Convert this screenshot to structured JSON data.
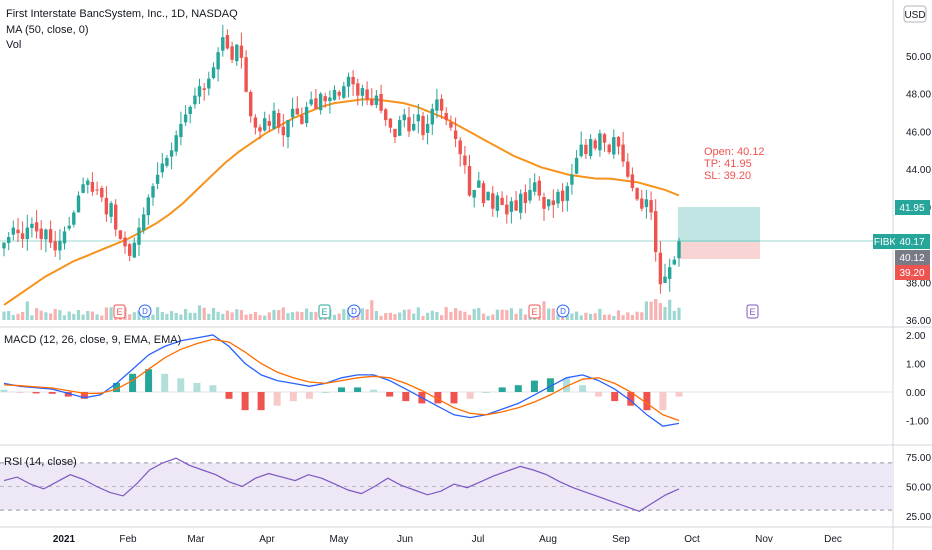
{
  "header": {
    "symbol_line": "First Interstate BancSystem, Inc., 1D, NASDAQ",
    "ma_label": "MA (50, close, 0)",
    "vol_label": "Vol",
    "currency": "USD"
  },
  "macd_label": "MACD (12, 26, close, 9, EMA, EMA)",
  "rsi_label": "RSI (14, close)",
  "trade": {
    "open_text": "Open: 40.12",
    "tp_text": "TP: 41.95",
    "sl_text": "SL: 39.20",
    "open": 40.12,
    "tp": 41.95,
    "sl": 39.2
  },
  "price_tags": {
    "tp": "41.95",
    "ticker": "FIBK",
    "last": "40.17",
    "open": "40.12",
    "sl": "39.20"
  },
  "colors": {
    "up": "#26a69a",
    "down": "#ef5350",
    "ma": "#f7931a",
    "macd": "#2962ff",
    "signal": "#ff6d00",
    "rsi": "#7e57c2",
    "rsi_band": "#ede7f6",
    "target_zone": "#b2dfdb",
    "stop_zone": "#f8c9c9"
  },
  "event_markers": [
    "E",
    "D",
    "E",
    "D",
    "E",
    "D",
    "E"
  ],
  "chart_data": {
    "type": "candlestick",
    "x_axis_labels": [
      "2021",
      "Feb",
      "Mar",
      "Apr",
      "May",
      "Jun",
      "Jul",
      "Aug",
      "Sep",
      "Oct",
      "Nov",
      "Dec"
    ],
    "price_axis": {
      "ticks": [
        "50.00",
        "48.00",
        "46.00",
        "44.00",
        "42.00",
        "38.00",
        "36.00"
      ],
      "range": [
        36.0,
        52.5
      ]
    },
    "macd_axis": {
      "ticks": [
        "2.00",
        "1.00",
        "0.00",
        "-1.00"
      ],
      "range": [
        -1.5,
        2.2
      ]
    },
    "rsi_axis": {
      "ticks": [
        "75.00",
        "50.00",
        "25.00"
      ],
      "range": [
        20,
        82
      ],
      "band": [
        30,
        70
      ]
    },
    "price_close": [
      40.1,
      40.4,
      40.9,
      40.6,
      40.3,
      40.9,
      41.1,
      40.7,
      40.3,
      40.8,
      40.1,
      39.7,
      40.2,
      40.7,
      41.0,
      41.7,
      42.6,
      43.2,
      43.4,
      42.8,
      42.9,
      42.5,
      41.6,
      42.2,
      40.8,
      40.3,
      39.9,
      39.4,
      40.1,
      40.9,
      41.6,
      42.5,
      43.1,
      43.7,
      44.3,
      44.6,
      45.0,
      45.8,
      46.4,
      46.9,
      47.3,
      47.9,
      48.4,
      48.2,
      48.8,
      49.4,
      50.2,
      51.0,
      50.4,
      49.8,
      50.6,
      49.9,
      48.1,
      46.8,
      46.2,
      46.0,
      46.7,
      46.3,
      47.1,
      46.2,
      45.8,
      46.6,
      47.2,
      46.9,
      46.4,
      47.3,
      47.7,
      47.2,
      48.0,
      47.6,
      47.8,
      48.2,
      47.9,
      48.4,
      48.9,
      48.5,
      47.9,
      48.3,
      47.7,
      47.4,
      47.9,
      47.1,
      46.6,
      46.2,
      45.7,
      46.6,
      46.9,
      46.0,
      46.4,
      46.9,
      45.8,
      46.4,
      47.2,
      47.7,
      47.1,
      46.6,
      46.2,
      45.6,
      44.8,
      44.2,
      42.6,
      42.9,
      43.4,
      42.2,
      42.8,
      41.9,
      42.6,
      42.1,
      41.6,
      42.3,
      41.8,
      42.7,
      42.2,
      42.9,
      43.3,
      42.6,
      41.9,
      42.4,
      42.1,
      42.8,
      42.3,
      43.1,
      43.7,
      44.6,
      45.3,
      44.8,
      45.6,
      45.1,
      45.9,
      45.4,
      44.9,
      45.7,
      45.2,
      44.4,
      43.6,
      43.0,
      42.4,
      41.9,
      42.4,
      41.7,
      39.6,
      37.9,
      38.3,
      38.8,
      39.2,
      40.17
    ],
    "ma50": [
      36.8,
      37.3,
      37.8,
      38.3,
      38.7,
      39.1,
      39.4,
      39.7,
      40.0,
      40.3,
      40.7,
      41.1,
      41.6,
      42.2,
      42.9,
      43.6,
      44.3,
      44.9,
      45.4,
      45.9,
      46.3,
      46.7,
      47.0,
      47.3,
      47.5,
      47.6,
      47.7,
      47.7,
      47.6,
      47.5,
      47.3,
      47.0,
      46.7,
      46.3,
      45.9,
      45.5,
      45.1,
      44.7,
      44.4,
      44.1,
      43.9,
      43.7,
      43.6,
      43.5,
      43.5,
      43.4,
      43.3,
      43.1,
      42.9,
      42.6
    ],
    "macd": [
      0.3,
      0.2,
      0.15,
      0.1,
      -0.05,
      -0.2,
      -0.1,
      0.3,
      0.8,
      1.3,
      1.6,
      1.8,
      1.9,
      2.0,
      1.6,
      1.0,
      0.6,
      0.4,
      0.3,
      0.2,
      0.3,
      0.5,
      0.6,
      0.6,
      0.4,
      0.1,
      -0.2,
      -0.5,
      -0.8,
      -0.9,
      -0.8,
      -0.6,
      -0.4,
      -0.1,
      0.2,
      0.5,
      0.6,
      0.4,
      0.1,
      -0.3,
      -0.8,
      -1.2,
      -1.1
    ],
    "signal": [
      0.25,
      0.22,
      0.18,
      0.14,
      0.05,
      -0.05,
      -0.05,
      0.1,
      0.4,
      0.8,
      1.2,
      1.5,
      1.7,
      1.85,
      1.75,
      1.4,
      1.0,
      0.7,
      0.5,
      0.35,
      0.3,
      0.4,
      0.5,
      0.55,
      0.5,
      0.3,
      0.05,
      -0.25,
      -0.55,
      -0.75,
      -0.8,
      -0.7,
      -0.55,
      -0.35,
      -0.1,
      0.2,
      0.45,
      0.5,
      0.3,
      0.0,
      -0.4,
      -0.8,
      -1.0
    ],
    "rsi": [
      55,
      58,
      52,
      48,
      54,
      60,
      56,
      50,
      45,
      42,
      52,
      64,
      70,
      74,
      68,
      64,
      60,
      54,
      50,
      57,
      61,
      58,
      55,
      60,
      57,
      52,
      47,
      44,
      50,
      57,
      51,
      47,
      43,
      46,
      52,
      49,
      54,
      59,
      63,
      67,
      64,
      60,
      54,
      49,
      45,
      41,
      37,
      33,
      29,
      36,
      43,
      48
    ]
  }
}
